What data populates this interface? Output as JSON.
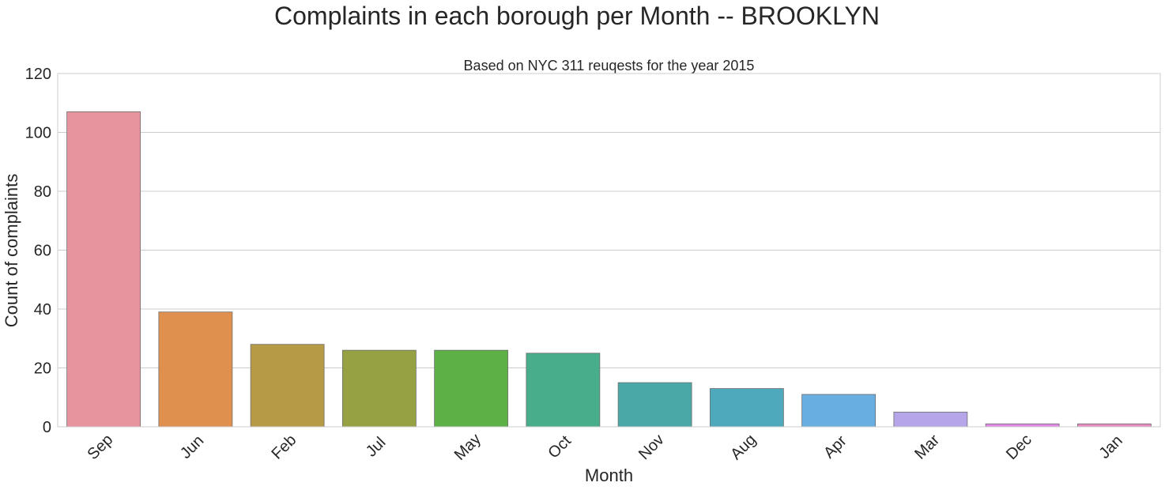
{
  "chart_data": {
    "type": "bar",
    "title": "Complaints in each borough per Month -- BROOKLYN",
    "subtitle": "Based on NYC 311 reuqests for the year 2015",
    "xlabel": "Month",
    "ylabel": "Count of complaints",
    "categories": [
      "Sep",
      "Jun",
      "Feb",
      "Jul",
      "May",
      "Oct",
      "Nov",
      "Aug",
      "Apr",
      "Mar",
      "Dec",
      "Jan"
    ],
    "values": [
      107,
      39,
      28,
      26,
      26,
      25,
      15,
      13,
      11,
      5,
      1,
      1
    ],
    "colors": [
      "#e8949f",
      "#e0904e",
      "#b69a45",
      "#95a143",
      "#5db046",
      "#48ad8b",
      "#4aa9a6",
      "#4fa9bd",
      "#69aee0",
      "#b6a5e8",
      "#e18be7",
      "#e88bc3"
    ],
    "ylim": [
      0,
      120
    ],
    "yticks": [
      0,
      20,
      40,
      60,
      80,
      100,
      120
    ],
    "grid": true,
    "legend": "none"
  }
}
